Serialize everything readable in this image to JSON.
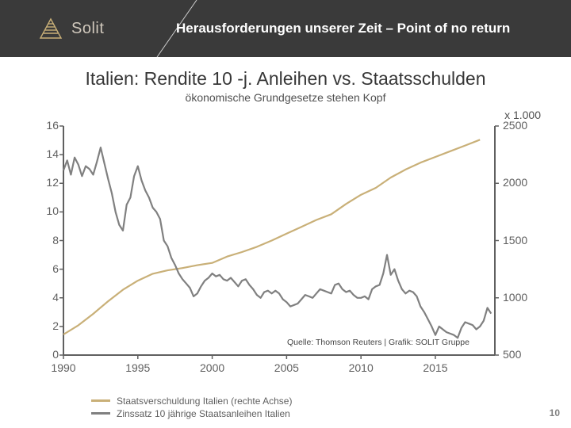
{
  "header": {
    "brand": "Solit",
    "title": "Herausforderungen unserer Zeit – Point of no return",
    "bg_color": "#3a3a3a",
    "brand_color": "#c9b078",
    "slant_color": "#cfcfcf"
  },
  "chart": {
    "type": "dual-axis-line",
    "title": "Italien: Rendite 10 -j. Anleihen vs. Staatsschulden",
    "subtitle": "ökonomische Grundgesetze stehen Kopf",
    "title_fontsize": 23,
    "subtitle_fontsize": 14,
    "title_color": "#373737",
    "subtitle_color": "#505050",
    "background_color": "#ffffff",
    "axis_color": "#606060",
    "axis_line_width": 2,
    "x": {
      "min": 1990,
      "max": 2019,
      "ticks": [
        1990,
        1995,
        2000,
        2005,
        2010,
        2015
      ]
    },
    "y_left": {
      "min": 0,
      "max": 16,
      "ticks": [
        0,
        2,
        4,
        6,
        8,
        10,
        12,
        14,
        16
      ],
      "tick_labels": [
        "0",
        "2",
        "4",
        "6",
        "8",
        "10",
        "12",
        "14",
        "16"
      ]
    },
    "y_right": {
      "min": 500,
      "max": 2500,
      "ticks": [
        500,
        1000,
        1500,
        2000,
        2500
      ],
      "tick_labels": [
        "500",
        "1000",
        "1500",
        "2000",
        "2500"
      ],
      "title": "x 1.000"
    },
    "series": {
      "debt": {
        "label": "Staatsverschuldung Italien (rechte Achse)",
        "color": "#c9b078",
        "line_width": 2.2,
        "axis": "right",
        "data": [
          [
            1990,
            680
          ],
          [
            1991,
            760
          ],
          [
            1992,
            860
          ],
          [
            1993,
            970
          ],
          [
            1994,
            1070
          ],
          [
            1995,
            1150
          ],
          [
            1996,
            1210
          ],
          [
            1997,
            1240
          ],
          [
            1998,
            1260
          ],
          [
            1999,
            1285
          ],
          [
            2000,
            1305
          ],
          [
            2001,
            1360
          ],
          [
            2002,
            1400
          ],
          [
            2003,
            1445
          ],
          [
            2004,
            1500
          ],
          [
            2005,
            1560
          ],
          [
            2006,
            1620
          ],
          [
            2007,
            1680
          ],
          [
            2008,
            1730
          ],
          [
            2009,
            1820
          ],
          [
            2010,
            1900
          ],
          [
            2011,
            1960
          ],
          [
            2012,
            2050
          ],
          [
            2013,
            2120
          ],
          [
            2014,
            2180
          ],
          [
            2015,
            2230
          ],
          [
            2016,
            2280
          ],
          [
            2017,
            2330
          ],
          [
            2018,
            2380
          ]
        ]
      },
      "yield": {
        "label": "Zinssatz 10 jährige Staatsanleihen Italien",
        "color": "#808080",
        "line_width": 2.2,
        "axis": "left",
        "data": [
          [
            1990,
            12.9
          ],
          [
            1990.25,
            13.6
          ],
          [
            1990.5,
            12.6
          ],
          [
            1990.75,
            13.8
          ],
          [
            1991,
            13.3
          ],
          [
            1991.25,
            12.5
          ],
          [
            1991.5,
            13.2
          ],
          [
            1991.75,
            13.0
          ],
          [
            1992,
            12.6
          ],
          [
            1992.25,
            13.5
          ],
          [
            1992.5,
            14.5
          ],
          [
            1992.75,
            13.4
          ],
          [
            1993,
            12.3
          ],
          [
            1993.25,
            11.3
          ],
          [
            1993.5,
            10.0
          ],
          [
            1993.75,
            9.1
          ],
          [
            1994,
            8.7
          ],
          [
            1994.25,
            10.5
          ],
          [
            1994.5,
            11.0
          ],
          [
            1994.75,
            12.5
          ],
          [
            1995,
            13.2
          ],
          [
            1995.25,
            12.2
          ],
          [
            1995.5,
            11.5
          ],
          [
            1995.75,
            11.0
          ],
          [
            1996,
            10.3
          ],
          [
            1996.25,
            10.0
          ],
          [
            1996.5,
            9.5
          ],
          [
            1996.75,
            8.0
          ],
          [
            1997,
            7.6
          ],
          [
            1997.25,
            6.8
          ],
          [
            1997.5,
            6.3
          ],
          [
            1997.75,
            5.7
          ],
          [
            1998,
            5.3
          ],
          [
            1998.25,
            5.0
          ],
          [
            1998.5,
            4.7
          ],
          [
            1998.75,
            4.1
          ],
          [
            1999,
            4.3
          ],
          [
            1999.25,
            4.8
          ],
          [
            1999.5,
            5.2
          ],
          [
            1999.75,
            5.4
          ],
          [
            2000,
            5.7
          ],
          [
            2000.25,
            5.5
          ],
          [
            2000.5,
            5.6
          ],
          [
            2000.75,
            5.3
          ],
          [
            2001,
            5.2
          ],
          [
            2001.25,
            5.4
          ],
          [
            2001.5,
            5.1
          ],
          [
            2001.75,
            4.8
          ],
          [
            2002,
            5.2
          ],
          [
            2002.25,
            5.3
          ],
          [
            2002.5,
            4.9
          ],
          [
            2002.75,
            4.6
          ],
          [
            2003,
            4.2
          ],
          [
            2003.25,
            4.0
          ],
          [
            2003.5,
            4.4
          ],
          [
            2003.75,
            4.5
          ],
          [
            2004,
            4.3
          ],
          [
            2004.25,
            4.5
          ],
          [
            2004.5,
            4.3
          ],
          [
            2004.75,
            3.9
          ],
          [
            2005,
            3.7
          ],
          [
            2005.25,
            3.4
          ],
          [
            2005.5,
            3.5
          ],
          [
            2005.75,
            3.6
          ],
          [
            2006,
            3.9
          ],
          [
            2006.25,
            4.2
          ],
          [
            2006.5,
            4.1
          ],
          [
            2006.75,
            4.0
          ],
          [
            2007,
            4.3
          ],
          [
            2007.25,
            4.6
          ],
          [
            2007.5,
            4.5
          ],
          [
            2007.75,
            4.4
          ],
          [
            2008,
            4.3
          ],
          [
            2008.25,
            4.9
          ],
          [
            2008.5,
            5.0
          ],
          [
            2008.75,
            4.6
          ],
          [
            2009,
            4.4
          ],
          [
            2009.25,
            4.5
          ],
          [
            2009.5,
            4.2
          ],
          [
            2009.75,
            4.0
          ],
          [
            2010,
            4.0
          ],
          [
            2010.25,
            4.1
          ],
          [
            2010.5,
            3.9
          ],
          [
            2010.75,
            4.6
          ],
          [
            2011,
            4.8
          ],
          [
            2011.25,
            4.9
          ],
          [
            2011.5,
            5.7
          ],
          [
            2011.75,
            7.0
          ],
          [
            2012,
            5.6
          ],
          [
            2012.25,
            6.0
          ],
          [
            2012.5,
            5.2
          ],
          [
            2012.75,
            4.6
          ],
          [
            2013,
            4.3
          ],
          [
            2013.25,
            4.5
          ],
          [
            2013.5,
            4.4
          ],
          [
            2013.75,
            4.1
          ],
          [
            2014,
            3.4
          ],
          [
            2014.25,
            3.0
          ],
          [
            2014.5,
            2.5
          ],
          [
            2014.75,
            2.0
          ],
          [
            2015,
            1.4
          ],
          [
            2015.25,
            2.0
          ],
          [
            2015.5,
            1.8
          ],
          [
            2015.75,
            1.6
          ],
          [
            2016,
            1.5
          ],
          [
            2016.25,
            1.4
          ],
          [
            2016.5,
            1.2
          ],
          [
            2016.75,
            1.9
          ],
          [
            2017,
            2.3
          ],
          [
            2017.25,
            2.2
          ],
          [
            2017.5,
            2.1
          ],
          [
            2017.75,
            1.8
          ],
          [
            2018,
            2.0
          ],
          [
            2018.25,
            2.4
          ],
          [
            2018.5,
            3.3
          ],
          [
            2018.75,
            2.9
          ]
        ]
      }
    },
    "source": "Quelle: Thomson Reuters | Grafik: SOLIT Gruppe",
    "source_fontsize": 10.5
  },
  "page_number": "10"
}
